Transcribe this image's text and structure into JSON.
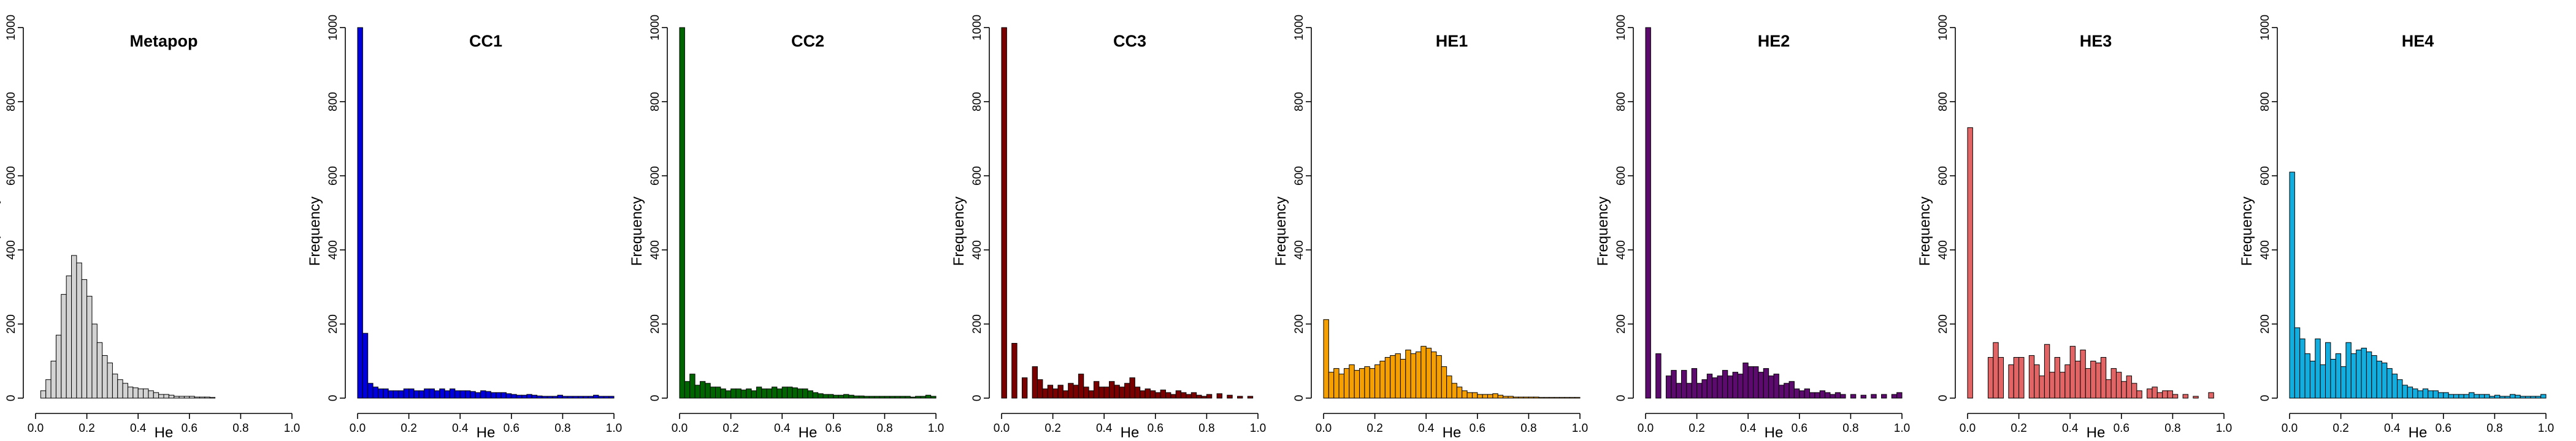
{
  "figure": {
    "panel_count": 8
  },
  "chart_data": [
    {
      "type": "bar",
      "title": "Metapop",
      "xlabel": "He",
      "ylabel": "Frequency",
      "xlim": [
        0,
        1.0
      ],
      "ylim": [
        0,
        1000
      ],
      "xticks": [
        "0.0",
        "0.2",
        "0.4",
        "0.6",
        "0.8",
        "1.0"
      ],
      "yticks": [
        "0",
        "200",
        "400",
        "600",
        "800",
        "1000"
      ],
      "bin_width": 0.02,
      "bar_color": "#d3d3d3",
      "bins_start": [
        0.02,
        0.04,
        0.06,
        0.08,
        0.1,
        0.12,
        0.14,
        0.16,
        0.18,
        0.2,
        0.22,
        0.24,
        0.26,
        0.28,
        0.3,
        0.32,
        0.34,
        0.36,
        0.38,
        0.4,
        0.42,
        0.44,
        0.46,
        0.48,
        0.5,
        0.52,
        0.54,
        0.56,
        0.58,
        0.6,
        0.62,
        0.64,
        0.66,
        0.68
      ],
      "values": [
        20,
        50,
        100,
        170,
        280,
        330,
        385,
        365,
        320,
        275,
        200,
        150,
        115,
        95,
        65,
        50,
        40,
        30,
        28,
        25,
        25,
        20,
        15,
        10,
        10,
        8,
        5,
        5,
        5,
        5,
        3,
        3,
        3,
        2
      ]
    },
    {
      "type": "bar",
      "title": "CC1",
      "xlabel": "He",
      "ylabel": "Frequency",
      "xlim": [
        0,
        1.0
      ],
      "ylim": [
        0,
        1000
      ],
      "xticks": [
        "0.0",
        "0.2",
        "0.4",
        "0.6",
        "0.8",
        "1.0"
      ],
      "yticks": [
        "0",
        "200",
        "400",
        "600",
        "800",
        "1000"
      ],
      "bin_width": 0.02,
      "bar_color": "#0000dd",
      "bins_start": [
        0.0,
        0.02,
        0.04,
        0.06,
        0.08,
        0.1,
        0.12,
        0.14,
        0.16,
        0.18,
        0.2,
        0.22,
        0.24,
        0.26,
        0.28,
        0.3,
        0.32,
        0.34,
        0.36,
        0.38,
        0.4,
        0.42,
        0.44,
        0.46,
        0.48,
        0.5,
        0.52,
        0.54,
        0.56,
        0.58,
        0.6,
        0.62,
        0.64,
        0.66,
        0.68,
        0.7,
        0.72,
        0.74,
        0.76,
        0.78,
        0.8,
        0.82,
        0.84,
        0.86,
        0.88,
        0.9,
        0.92,
        0.94,
        0.96,
        0.98
      ],
      "values": [
        1000,
        175,
        40,
        30,
        25,
        25,
        20,
        20,
        20,
        25,
        25,
        20,
        20,
        25,
        25,
        20,
        25,
        20,
        25,
        20,
        20,
        20,
        18,
        15,
        20,
        18,
        15,
        15,
        15,
        12,
        10,
        8,
        8,
        10,
        8,
        6,
        5,
        5,
        5,
        8,
        5,
        5,
        5,
        5,
        5,
        5,
        8,
        5,
        5,
        5
      ]
    },
    {
      "type": "bar",
      "title": "CC2",
      "xlabel": "He",
      "ylabel": "Frequency",
      "xlim": [
        0,
        1.0
      ],
      "ylim": [
        0,
        1000
      ],
      "xticks": [
        "0.0",
        "0.2",
        "0.4",
        "0.6",
        "0.8",
        "1.0"
      ],
      "yticks": [
        "0",
        "200",
        "400",
        "600",
        "800",
        "1000"
      ],
      "bin_width": 0.02,
      "bar_color": "#006400",
      "bins_start": [
        0.0,
        0.02,
        0.04,
        0.06,
        0.08,
        0.1,
        0.12,
        0.14,
        0.16,
        0.18,
        0.2,
        0.22,
        0.24,
        0.26,
        0.28,
        0.3,
        0.32,
        0.34,
        0.36,
        0.38,
        0.4,
        0.42,
        0.44,
        0.46,
        0.48,
        0.5,
        0.52,
        0.54,
        0.56,
        0.58,
        0.6,
        0.62,
        0.64,
        0.66,
        0.68,
        0.7,
        0.72,
        0.74,
        0.76,
        0.78,
        0.8,
        0.82,
        0.84,
        0.86,
        0.88,
        0.9,
        0.92,
        0.94,
        0.96,
        0.98
      ],
      "values": [
        1000,
        45,
        65,
        35,
        45,
        40,
        30,
        30,
        25,
        20,
        25,
        25,
        22,
        25,
        20,
        30,
        25,
        25,
        30,
        25,
        30,
        30,
        28,
        25,
        25,
        20,
        15,
        12,
        10,
        10,
        8,
        8,
        10,
        8,
        6,
        6,
        5,
        5,
        5,
        5,
        5,
        5,
        5,
        5,
        5,
        3,
        5,
        5,
        8,
        5
      ]
    },
    {
      "type": "bar",
      "title": "CC3",
      "xlabel": "He",
      "ylabel": "Frequency",
      "xlim": [
        0,
        1.0
      ],
      "ylim": [
        0,
        1000
      ],
      "xticks": [
        "0.0",
        "0.2",
        "0.4",
        "0.6",
        "0.8",
        "1.0"
      ],
      "yticks": [
        "0",
        "200",
        "400",
        "600",
        "800",
        "1000"
      ],
      "bin_width": 0.02,
      "bar_color": "#7a0000",
      "bins_start": [
        0.0,
        0.04,
        0.08,
        0.12,
        0.14,
        0.16,
        0.18,
        0.2,
        0.22,
        0.24,
        0.26,
        0.28,
        0.3,
        0.32,
        0.34,
        0.36,
        0.38,
        0.4,
        0.42,
        0.44,
        0.46,
        0.48,
        0.5,
        0.52,
        0.54,
        0.56,
        0.58,
        0.6,
        0.62,
        0.64,
        0.66,
        0.68,
        0.7,
        0.72,
        0.74,
        0.76,
        0.78,
        0.8,
        0.84,
        0.88,
        0.92,
        0.96
      ],
      "values": [
        1000,
        148,
        55,
        85,
        50,
        25,
        35,
        25,
        35,
        20,
        40,
        35,
        65,
        30,
        20,
        45,
        30,
        30,
        45,
        35,
        30,
        40,
        55,
        30,
        20,
        25,
        20,
        15,
        22,
        15,
        10,
        20,
        15,
        10,
        15,
        8,
        5,
        10,
        12,
        8,
        5,
        5
      ]
    },
    {
      "type": "bar",
      "title": "HE1",
      "xlabel": "He",
      "ylabel": "Frequency",
      "xlim": [
        0,
        1.0
      ],
      "ylim": [
        0,
        1000
      ],
      "xticks": [
        "0.0",
        "0.2",
        "0.4",
        "0.6",
        "0.8",
        "1.0"
      ],
      "yticks": [
        "0",
        "200",
        "400",
        "600",
        "800",
        "1000"
      ],
      "bin_width": 0.02,
      "bar_color": "#f5a000",
      "bins_start": [
        0.0,
        0.02,
        0.04,
        0.06,
        0.08,
        0.1,
        0.12,
        0.14,
        0.16,
        0.18,
        0.2,
        0.22,
        0.24,
        0.26,
        0.28,
        0.3,
        0.32,
        0.34,
        0.36,
        0.38,
        0.4,
        0.42,
        0.44,
        0.46,
        0.48,
        0.5,
        0.52,
        0.54,
        0.56,
        0.58,
        0.6,
        0.62,
        0.64,
        0.66,
        0.68,
        0.7,
        0.72,
        0.74,
        0.76,
        0.78,
        0.8,
        0.82,
        0.84,
        0.86,
        0.88,
        0.9,
        0.92,
        0.94,
        0.96,
        0.98
      ],
      "values": [
        212,
        70,
        80,
        65,
        80,
        90,
        75,
        80,
        85,
        80,
        90,
        100,
        110,
        115,
        120,
        105,
        130,
        120,
        125,
        140,
        135,
        125,
        115,
        85,
        60,
        40,
        30,
        20,
        15,
        15,
        10,
        10,
        10,
        12,
        8,
        5,
        5,
        3,
        3,
        3,
        3,
        3,
        2,
        2,
        2,
        2,
        2,
        2,
        2,
        2
      ]
    },
    {
      "type": "bar",
      "title": "HE2",
      "xlabel": "He",
      "ylabel": "Frequency",
      "xlim": [
        0,
        1.0
      ],
      "ylim": [
        0,
        1000
      ],
      "xticks": [
        "0.0",
        "0.2",
        "0.4",
        "0.6",
        "0.8",
        "1.0"
      ],
      "yticks": [
        "0",
        "200",
        "400",
        "600",
        "800",
        "1000"
      ],
      "bin_width": 0.02,
      "bar_color": "#5c0a6e",
      "bins_start": [
        0.0,
        0.04,
        0.08,
        0.1,
        0.12,
        0.14,
        0.16,
        0.18,
        0.2,
        0.22,
        0.24,
        0.26,
        0.28,
        0.3,
        0.32,
        0.34,
        0.36,
        0.38,
        0.4,
        0.42,
        0.44,
        0.46,
        0.48,
        0.5,
        0.52,
        0.54,
        0.56,
        0.58,
        0.6,
        0.62,
        0.64,
        0.66,
        0.68,
        0.7,
        0.72,
        0.74,
        0.76,
        0.8,
        0.84,
        0.88,
        0.92,
        0.96,
        0.98
      ],
      "values": [
        1000,
        120,
        60,
        75,
        40,
        75,
        40,
        80,
        40,
        50,
        65,
        55,
        60,
        75,
        60,
        70,
        65,
        95,
        85,
        85,
        70,
        80,
        60,
        65,
        35,
        40,
        45,
        25,
        20,
        25,
        15,
        15,
        20,
        15,
        10,
        15,
        10,
        10,
        8,
        10,
        10,
        10,
        15
      ]
    },
    {
      "type": "bar",
      "title": "HE3",
      "xlabel": "He",
      "ylabel": "Frequency",
      "xlim": [
        0,
        1.0
      ],
      "ylim": [
        0,
        1000
      ],
      "xticks": [
        "0.0",
        "0.2",
        "0.4",
        "0.6",
        "0.8",
        "1.0"
      ],
      "yticks": [
        "0",
        "200",
        "400",
        "600",
        "800",
        "1000"
      ],
      "bin_width": 0.02,
      "bar_color": "#e36464",
      "bins_start": [
        0.0,
        0.08,
        0.1,
        0.12,
        0.16,
        0.18,
        0.2,
        0.24,
        0.26,
        0.28,
        0.3,
        0.32,
        0.34,
        0.36,
        0.38,
        0.4,
        0.42,
        0.44,
        0.46,
        0.48,
        0.5,
        0.52,
        0.54,
        0.56,
        0.58,
        0.6,
        0.62,
        0.64,
        0.66,
        0.7,
        0.72,
        0.74,
        0.76,
        0.78,
        0.8,
        0.84,
        0.88,
        0.94
      ],
      "values": [
        730,
        110,
        150,
        110,
        90,
        110,
        110,
        115,
        90,
        60,
        145,
        70,
        110,
        70,
        90,
        140,
        100,
        130,
        80,
        100,
        95,
        110,
        50,
        80,
        70,
        45,
        60,
        40,
        20,
        25,
        30,
        15,
        20,
        20,
        10,
        10,
        5,
        15
      ]
    },
    {
      "type": "bar",
      "title": "HE4",
      "xlabel": "He",
      "ylabel": "Frequency",
      "xlim": [
        0,
        1.0
      ],
      "ylim": [
        0,
        1000
      ],
      "xticks": [
        "0.0",
        "0.2",
        "0.4",
        "0.6",
        "0.8",
        "1.0"
      ],
      "yticks": [
        "0",
        "200",
        "400",
        "600",
        "800",
        "1000"
      ],
      "bin_width": 0.02,
      "bar_color": "#12aee0",
      "bins_start": [
        0.0,
        0.02,
        0.04,
        0.06,
        0.08,
        0.1,
        0.12,
        0.14,
        0.16,
        0.18,
        0.2,
        0.22,
        0.24,
        0.26,
        0.28,
        0.3,
        0.32,
        0.34,
        0.36,
        0.38,
        0.4,
        0.42,
        0.44,
        0.46,
        0.48,
        0.5,
        0.52,
        0.54,
        0.56,
        0.58,
        0.6,
        0.62,
        0.64,
        0.66,
        0.68,
        0.7,
        0.72,
        0.74,
        0.76,
        0.78,
        0.8,
        0.82,
        0.84,
        0.86,
        0.88,
        0.9,
        0.92,
        0.94,
        0.96,
        0.98
      ],
      "values": [
        610,
        190,
        160,
        120,
        100,
        160,
        90,
        150,
        105,
        120,
        85,
        150,
        120,
        130,
        135,
        125,
        115,
        100,
        95,
        80,
        65,
        50,
        35,
        30,
        25,
        20,
        25,
        20,
        20,
        15,
        15,
        10,
        10,
        10,
        10,
        15,
        10,
        10,
        10,
        5,
        8,
        5,
        5,
        10,
        8,
        5,
        5,
        5,
        5,
        10
      ]
    }
  ]
}
